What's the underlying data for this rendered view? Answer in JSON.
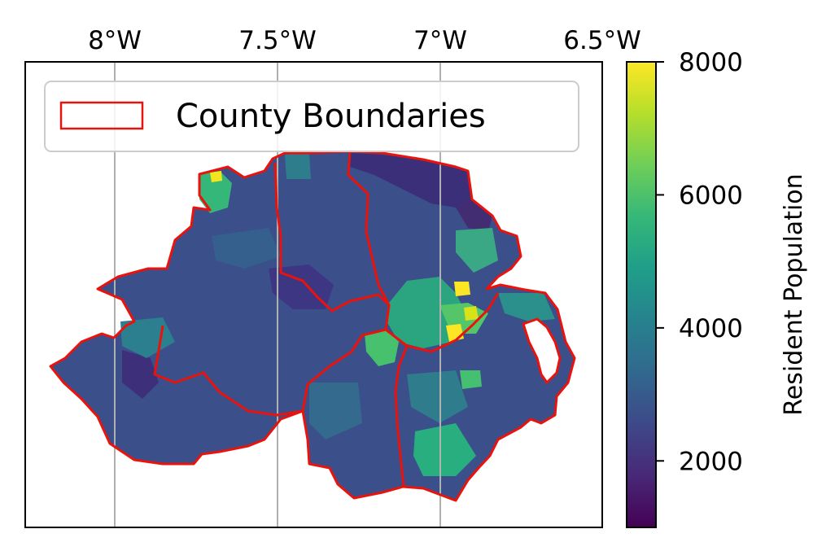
{
  "map": {
    "title": "",
    "longitude_ticks": [
      "8°W",
      "7.5°W",
      "7°W",
      "6.5°W"
    ],
    "longitude_values": [
      -8.0,
      -7.5,
      -7.0,
      -6.5
    ],
    "gridlines": true,
    "legend": {
      "label": "County Boundaries",
      "placement": "top-left",
      "swatch_color": "#e8130d"
    },
    "boundary_color": "#e8130d"
  },
  "colorbar": {
    "label": "Resident Population",
    "ticks": [
      "2000",
      "4000",
      "6000",
      "8000"
    ],
    "tick_values": [
      2000,
      4000,
      6000,
      8000
    ],
    "range": [
      1000,
      8000
    ],
    "colormap": "viridis",
    "stops": [
      "#440154",
      "#482878",
      "#3e4989",
      "#31688e",
      "#26828e",
      "#1f9e89",
      "#35b779",
      "#6ece58",
      "#b5de2b",
      "#fde725"
    ]
  },
  "highlights": {
    "background_fill": "#3b4f8a",
    "dark_fill": "#3a2f78",
    "green_fill": "#29af7f",
    "teal_fill": "#2c7f8e",
    "yellow_fill": "#f2e51d"
  }
}
